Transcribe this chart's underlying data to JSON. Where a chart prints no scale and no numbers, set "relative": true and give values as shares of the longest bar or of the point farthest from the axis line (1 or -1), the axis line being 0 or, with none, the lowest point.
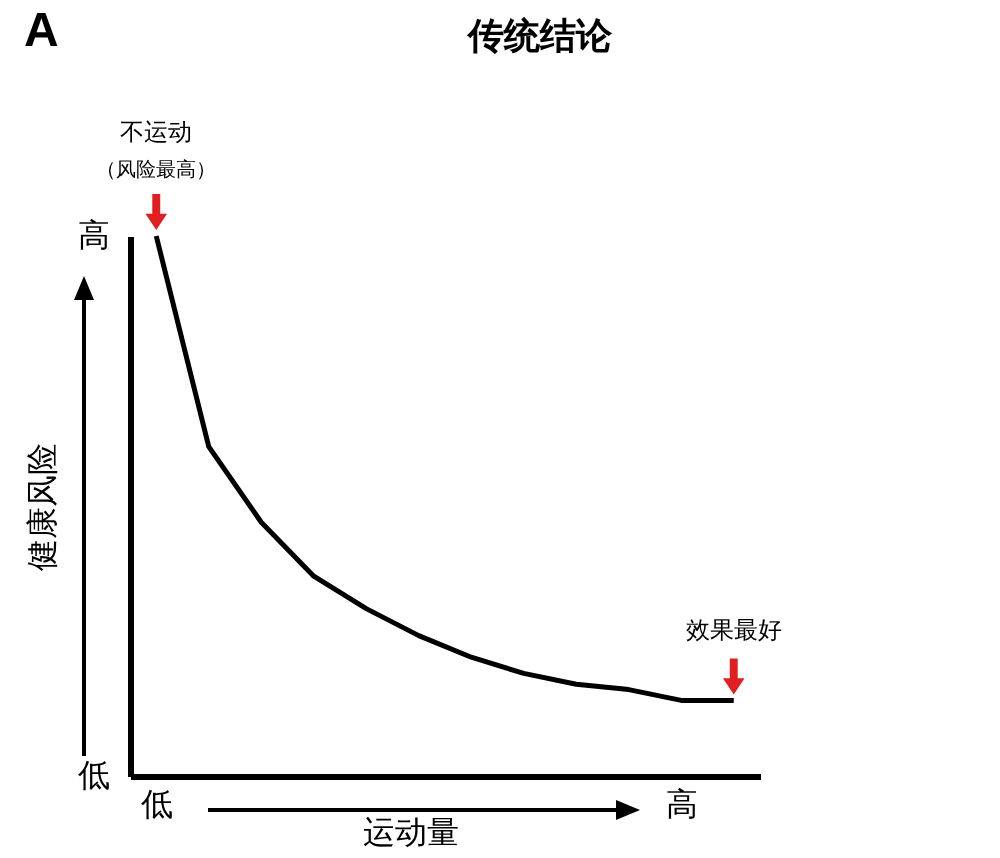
{
  "chart_data": {
    "type": "line",
    "relative": true,
    "title": "传统结论",
    "xlabel": "运动量",
    "ylabel": "健康风险",
    "annotations": [
      "A",
      "不运动",
      "（风险最高）",
      "效果最好",
      "高",
      "低"
    ],
    "categories": [
      "低",
      null,
      null,
      null,
      null,
      null,
      null,
      null,
      null,
      null,
      "高",
      null
    ],
    "series": [
      {
        "color": "#000000",
        "values": [
          1.0,
          0.61,
          0.47,
          0.37,
          0.31,
          0.26,
          0.22,
          0.19,
          0.17,
          0.16,
          0.14,
          0.14
        ]
      }
    ],
    "grid": false,
    "legend": false,
    "marker": "none",
    "line_style": "solid"
  }
}
